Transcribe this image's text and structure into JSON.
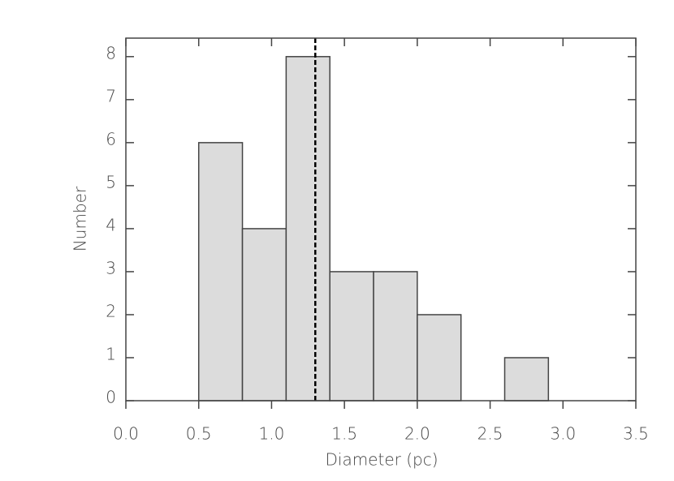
{
  "chart_data": {
    "type": "histogram",
    "x_label": "Diameter (pc)",
    "y_label": "Number",
    "bins": [
      0.5,
      0.8,
      1.1,
      1.4,
      1.7,
      2.0,
      2.3,
      2.6,
      2.9
    ],
    "values": [
      6,
      4,
      8,
      3,
      3,
      2,
      0,
      1
    ],
    "color": "#dcdcdc",
    "edge_color": "#444444",
    "vline": 1.3,
    "xlim": [
      0,
      3.5
    ],
    "xticks": [
      {
        "value": 0,
        "label": "0.0"
      },
      0.5,
      {
        "value": 1,
        "label": "1.0"
      },
      1.5,
      {
        "value": 2,
        "label": "2.0"
      },
      2.5,
      {
        "value": 3,
        "label": "3.0"
      },
      3.5
    ],
    "ylim": [
      0,
      8.43
    ],
    "yticks": [
      0,
      1,
      2,
      3,
      4,
      5,
      6,
      7,
      8
    ]
  }
}
